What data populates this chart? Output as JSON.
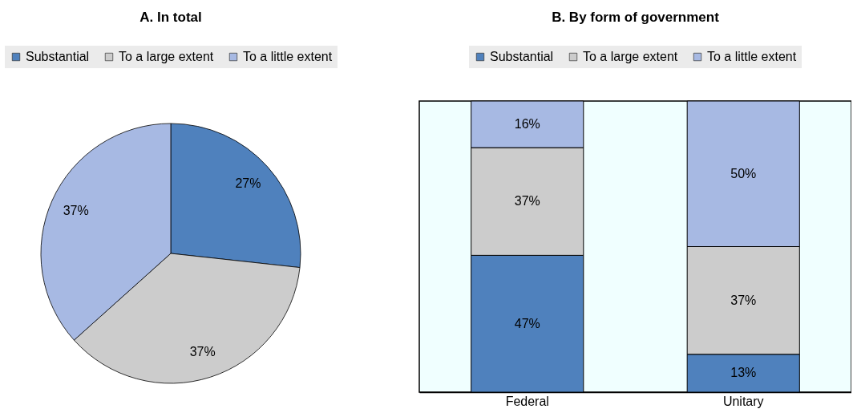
{
  "chart_data": [
    {
      "type": "pie",
      "title": "A. In total",
      "categories": [
        "Substantial",
        "To a large extent",
        "To a little extent"
      ],
      "values": [
        27,
        37,
        37
      ],
      "colors": [
        "#4f81bd",
        "#cccccc",
        "#a7b9e3"
      ],
      "value_labels": [
        "27%",
        "37%",
        "37%"
      ],
      "legend": "top"
    },
    {
      "type": "bar",
      "title": "B. By form of government",
      "categories": [
        "Federal",
        "Unitary"
      ],
      "series": [
        {
          "name": "Substantial",
          "color": "#4f81bd",
          "values": [
            47,
            13
          ],
          "value_labels": [
            "47%",
            "13%"
          ]
        },
        {
          "name": "To a large extent",
          "color": "#cccccc",
          "values": [
            37,
            37
          ],
          "value_labels": [
            "37%",
            "37%"
          ]
        },
        {
          "name": "To a little extent",
          "color": "#a7b9e3",
          "values": [
            16,
            50
          ],
          "value_labels": [
            "16%",
            "50%"
          ]
        }
      ],
      "stacked": true,
      "ylim": [
        0,
        100
      ],
      "tick_labels": "x",
      "legend": "top"
    }
  ]
}
